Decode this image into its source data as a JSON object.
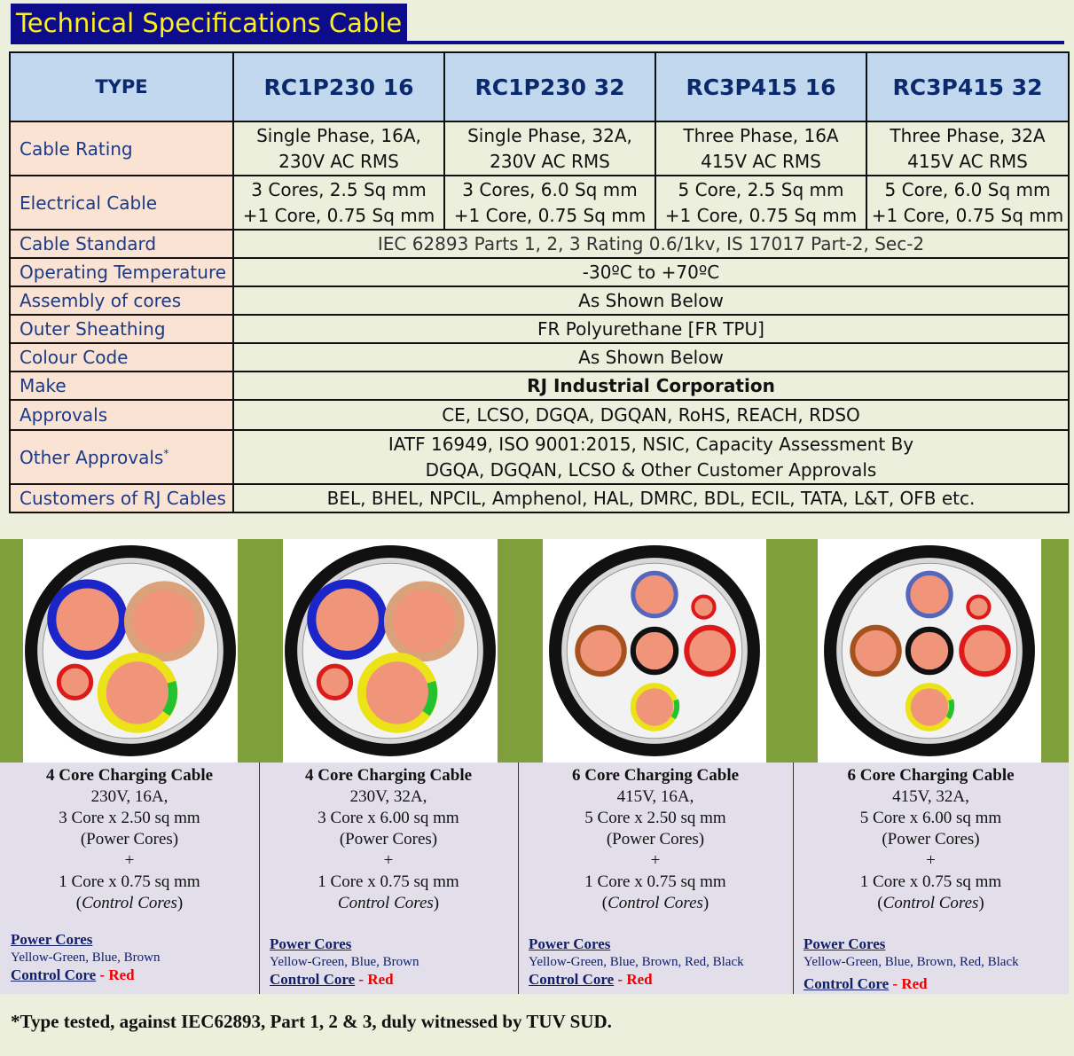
{
  "title": "Technical Specifications Cable",
  "table": {
    "header": [
      "TYPE",
      "RC1P230 16",
      "RC1P230 32",
      "RC3P415 16",
      "RC3P415 32"
    ],
    "cable_rating": {
      "label": "Cable Rating",
      "values": [
        [
          "Single Phase, 16A,",
          "230V AC RMS"
        ],
        [
          "Single Phase, 32A,",
          "230V AC RMS"
        ],
        [
          "Three Phase, 16A",
          "415V AC RMS"
        ],
        [
          "Three Phase, 32A",
          "415V AC RMS"
        ]
      ]
    },
    "electrical_cable": {
      "label": "Electrical Cable",
      "values": [
        [
          "3 Cores, 2.5 Sq mm",
          "+1 Core, 0.75 Sq mm"
        ],
        [
          "3 Cores, 6.0 Sq mm",
          "+1 Core, 0.75 Sq mm"
        ],
        [
          "5 Core, 2.5 Sq mm",
          "+1 Core, 0.75 Sq mm"
        ],
        [
          "5 Core, 6.0 Sq mm",
          "+1 Core, 0.75 Sq mm"
        ]
      ]
    },
    "rows": [
      {
        "label": "Cable Standard",
        "value": "IEC 62893 Parts 1, 2, 3  Rating 0.6/1kv, IS 17017 Part-2, Sec-2"
      },
      {
        "label": "Operating Temperature",
        "value": "-30ºC to +70ºC"
      },
      {
        "label": "Assembly of cores",
        "value": "As Shown Below"
      },
      {
        "label": "Outer Sheathing",
        "value": "FR  Polyurethane [FR TPU]"
      },
      {
        "label": "Colour Code",
        "value": "As Shown Below"
      },
      {
        "label": "Make",
        "value": "RJ Industrial Corporation"
      },
      {
        "label": "Approvals",
        "value": "CE, LCSO, DGQA, DGQAN, RoHS, REACH, RDSO"
      }
    ],
    "other_approvals": {
      "label": "Other Approvals",
      "label_sup": "*",
      "lines": [
        "IATF 16949, ISO 9001:2015, NSIC, Capacity Assessment By",
        "DGQA, DGQAN, LCSO & Other Customer Approvals"
      ]
    },
    "customers": {
      "label": "Customers of RJ Cables",
      "value": "BEL, BHEL, NPCIL, Amphenol, HAL, DMRC, BDL, ECIL, TATA, L&T, OFB etc."
    }
  },
  "cables": [
    {
      "heading": "4 Core Charging Cable",
      "lines": [
        "230V, 16A,",
        "3 Core x 2.50 sq mm",
        "(Power Cores)",
        "+",
        "1 Core x 0.75 sq mm"
      ],
      "control_open": "(",
      "control_text": "Control Cores",
      "control_close": ")",
      "power_label": "Power Cores",
      "power_colors": "Yellow-Green, Blue, Brown",
      "control_label": "Control Core",
      "control_sep": " - ",
      "control_color": "Red"
    },
    {
      "heading": "4 Core Charging Cable",
      "lines": [
        "230V, 32A,",
        "3 Core x 6.00 sq mm",
        "(Power Cores)",
        "+",
        "1 Core x 0.75 sq mm"
      ],
      "control_open": "",
      "control_text": "Control Cores",
      "control_close": ")",
      "power_label": "Power Cores",
      "power_colors": "Yellow-Green, Blue, Brown",
      "control_label": "Control Core",
      "control_sep": " - ",
      "control_color": "Red"
    },
    {
      "heading": "6 Core Charging Cable",
      "lines": [
        "415V, 16A,",
        "5 Core x 2.50 sq mm",
        "(Power Cores)",
        "+",
        "1 Core x 0.75 sq mm"
      ],
      "control_open": "(",
      "control_text": "Control Cores",
      "control_close": ")",
      "power_label": "Power Cores",
      "power_colors": "Yellow-Green, Blue, Brown, Red, Black",
      "control_label": "Control Core",
      "control_sep": " - ",
      "control_color": "Red"
    },
    {
      "heading": "6 Core Charging Cable",
      "lines": [
        "415V, 32A,",
        "5 Core x 6.00 sq mm",
        "(Power Cores)",
        "+",
        "1 Core x 0.75 sq mm"
      ],
      "control_open": "(",
      "control_text": "Control Cores",
      "control_close": ")",
      "power_label": "Power Cores",
      "power_colors": "Yellow-Green, Blue, Brown, Red, Black",
      "control_label": "Control Core",
      "control_sep": " - ",
      "control_color": "Red"
    }
  ],
  "footnote": "*Type tested, against IEC62893, Part 1, 2 & 3, duly witnessed by TUV SUD.",
  "colors": {
    "title_bg": "#0d0d8c",
    "title_text": "#ffef1a",
    "header_bg": "#c2d8ee",
    "label_bg": "#fbe3d3",
    "value_bg": "#ecefdc",
    "photo_frame": "#7e9f3a",
    "caption_bg": "#e2dfea"
  }
}
